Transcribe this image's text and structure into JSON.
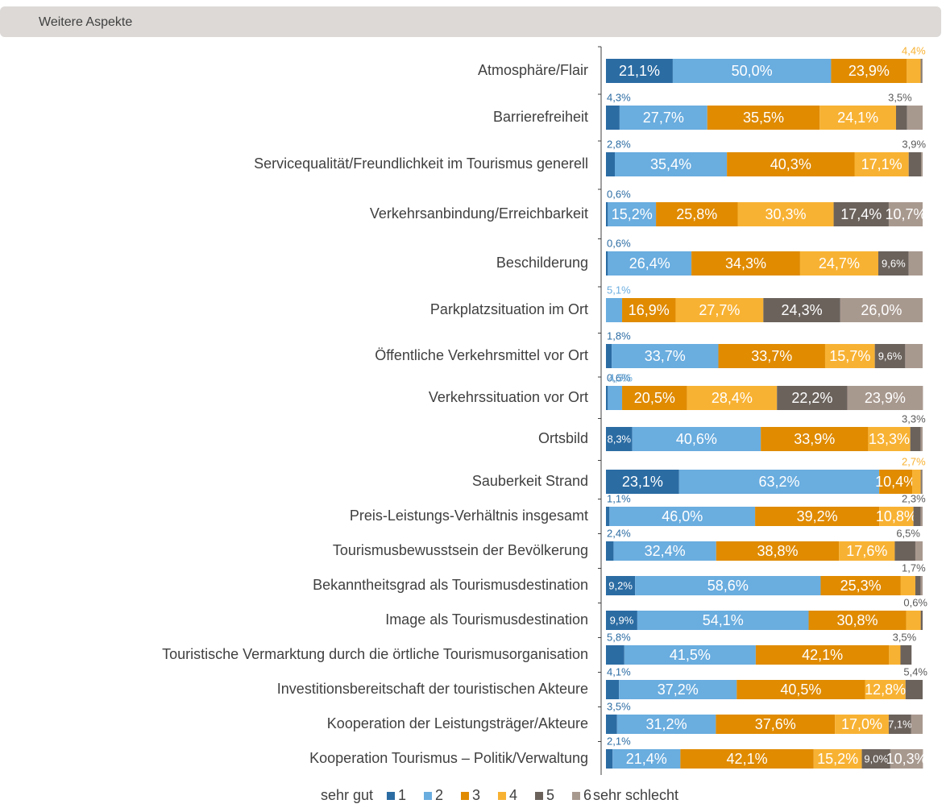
{
  "chart_data": {
    "type": "stacked-bar-horizontal",
    "title": "Weitere Aspekte",
    "categories": [
      "Atmosphäre/Flair",
      "Barrierefreiheit",
      "Servicequalität/Freundlichkeit im Tourismus generell",
      "Verkehrsanbindung/Erreichbarkeit",
      "Beschilderung",
      "Parkplatzsituation im Ort",
      "Öffentliche Verkehrsmittel vor Ort",
      "Verkehrssituation vor Ort",
      "Ortsbild",
      "Sauberkeit Strand",
      "Preis-Leistungs-Verhältnis insgesamt",
      "Tourismusbewusstsein der Bevölkerung",
      "Bekanntheitsgrad als Tourismusdestination",
      "Image als Tourismusdestination",
      "Touristische Vermarktung durch die örtliche Tourismusorganisation",
      "Investitionsbereitschaft der touristischen Akteure",
      "Kooperation der Leistungsträger/Akteure",
      "Kooperation Tourismus – Politik/Verwaltung"
    ],
    "xlim": [
      0,
      100
    ],
    "legend_start": "sehr gut",
    "legend_end": "sehr schlecht",
    "series": [
      {
        "name": "1",
        "color": "#2b6ca3",
        "values": [
          21.1,
          4.3,
          2.8,
          0.6,
          0.6,
          0,
          1.8,
          0.6,
          8.3,
          23.1,
          1.1,
          2.4,
          9.2,
          9.9,
          5.8,
          4.1,
          3.5,
          2.1
        ],
        "value_labels": [
          "21,1%",
          "4,3%",
          "2,8%",
          "0,6%",
          "0,6%",
          null,
          "1,8%",
          "0,6%",
          "8,3%",
          "23,1%",
          "1,1%",
          "2,4%",
          "9,2%",
          "9,9%",
          "5,8%",
          "4,1%",
          "3,5%",
          "2,1%"
        ]
      },
      {
        "name": "2",
        "color": "#6aaddf",
        "values": [
          50.0,
          27.7,
          35.4,
          15.2,
          26.4,
          5.1,
          33.7,
          4.5,
          40.6,
          63.2,
          46.0,
          32.4,
          58.6,
          54.1,
          41.5,
          37.2,
          31.2,
          21.4
        ],
        "value_labels": [
          "50,0%",
          "27,7%",
          "35,4%",
          "15,2%",
          "26,4%",
          "5,1%",
          "33,7%",
          "4,5%",
          "40,6%",
          "63,2%",
          "46,0%",
          "32,4%",
          "58,6%",
          "54,1%",
          "41,5%",
          "37,2%",
          "31,2%",
          "21,4%"
        ]
      },
      {
        "name": "3",
        "color": "#e08b00",
        "values": [
          23.9,
          35.5,
          40.3,
          25.8,
          34.3,
          16.9,
          33.7,
          20.5,
          33.9,
          10.4,
          39.2,
          38.8,
          25.3,
          30.8,
          42.1,
          40.5,
          37.6,
          42.1
        ],
        "value_labels": [
          "23,9%",
          "35,5%",
          "40,3%",
          "25,8%",
          "34,3%",
          "16,9%",
          "33,7%",
          "20,5%",
          "33,9%",
          "10,4%",
          "39,2%",
          "38,8%",
          "25,3%",
          "30,8%",
          "42,1%",
          "40,5%",
          "37,6%",
          "42,1%"
        ]
      },
      {
        "name": "4",
        "color": "#f8b233",
        "values": [
          4.4,
          24.1,
          17.1,
          30.3,
          24.7,
          27.7,
          15.7,
          28.4,
          13.3,
          2.7,
          10.8,
          17.6,
          4.6,
          4.6,
          3.6,
          12.8,
          17.0,
          15.2
        ],
        "value_labels": [
          "4,4%",
          "24,1%",
          "17,1%",
          "30,3%",
          "24,7%",
          "27,7%",
          "15,7%",
          "28,4%",
          "13,3%",
          "2,7%",
          "10,8%",
          "17,6%",
          null,
          null,
          null,
          "12,8%",
          "17,0%",
          "15,2%"
        ]
      },
      {
        "name": "5",
        "color": "#6b625c",
        "values": [
          0.3,
          3.5,
          3.9,
          17.4,
          9.6,
          24.3,
          9.6,
          22.2,
          3.3,
          0.3,
          2.3,
          6.5,
          1.7,
          0.6,
          3.5,
          5.4,
          7.1,
          9.0
        ],
        "value_labels": [
          null,
          "3,5%",
          "3,9%",
          "17,4%",
          "9,6%",
          "24,3%",
          "9,6%",
          "22,2%",
          "3,3%",
          null,
          "2,3%",
          "6,5%",
          "1,7%",
          "0,6%",
          "3,5%",
          "5,4%",
          "7,1%",
          "9,0%"
        ]
      },
      {
        "name": "6",
        "color": "#a8998f",
        "values": [
          0.3,
          4.9,
          0.5,
          10.7,
          4.4,
          26.0,
          5.5,
          23.9,
          0.6,
          0.3,
          0.6,
          2.3,
          0.6,
          0,
          0,
          0,
          3.6,
          10.3
        ],
        "value_labels": [
          null,
          null,
          null,
          "10,7%",
          null,
          "26,0%",
          null,
          "23,9%",
          null,
          null,
          null,
          null,
          null,
          null,
          null,
          null,
          null,
          "10,3%"
        ]
      }
    ]
  }
}
